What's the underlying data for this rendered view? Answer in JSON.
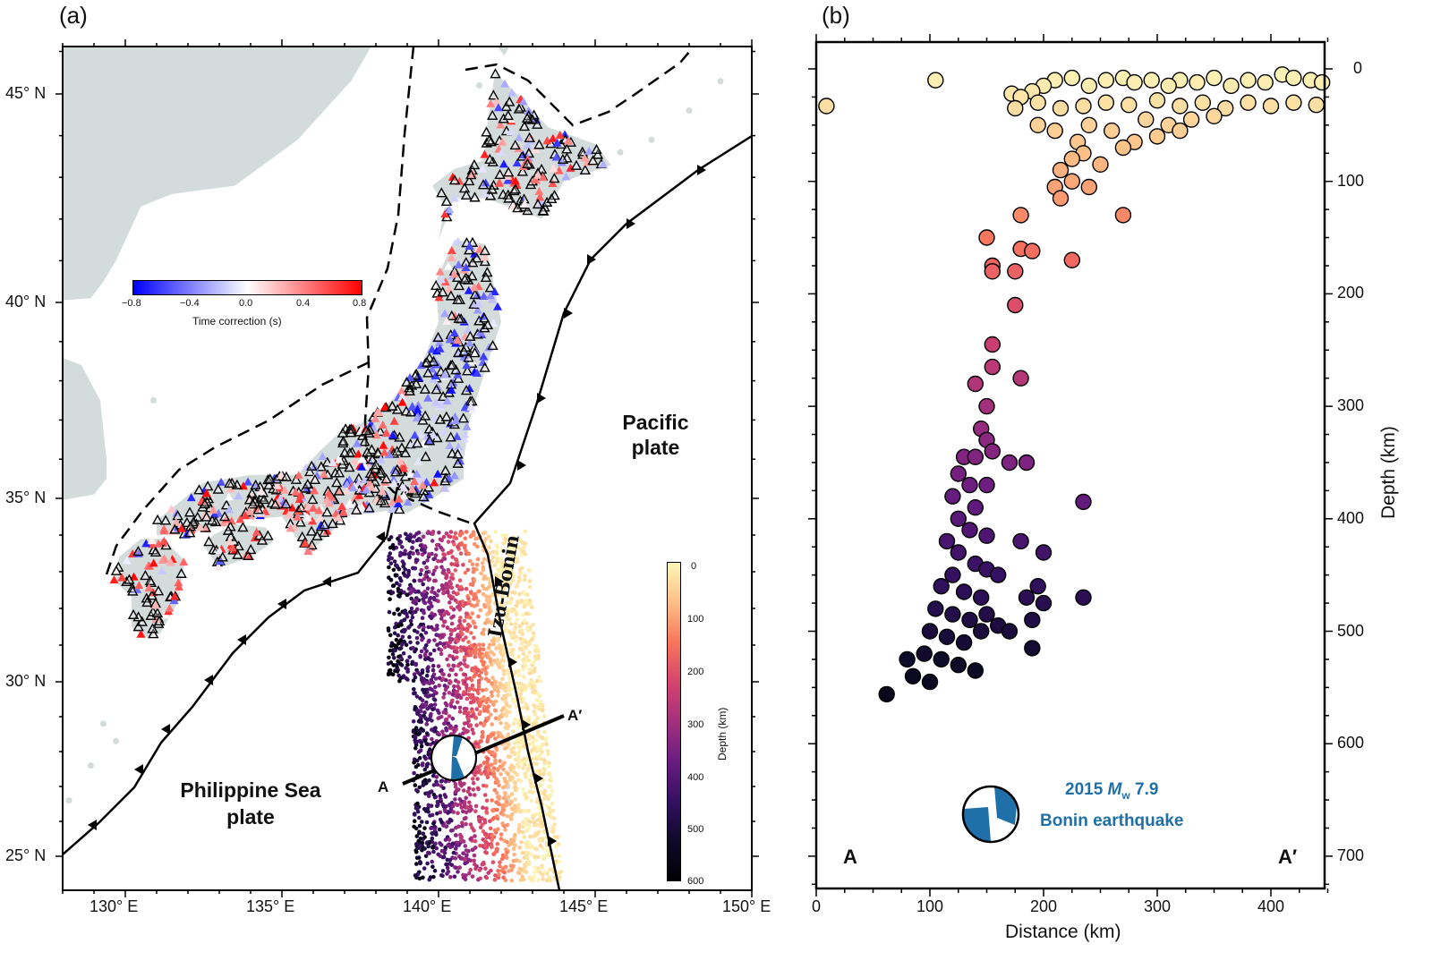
{
  "panel_a": {
    "label": "(a)",
    "lon_ticks": [
      "130° E",
      "135° E",
      "140° E",
      "145° E",
      "150° E"
    ],
    "lat_ticks": [
      "25° N",
      "30° N",
      "35° N",
      "40° N",
      "45° N"
    ],
    "plate_labels": {
      "pacific_1": "Pacific",
      "pacific_2": "plate",
      "philippine_1": "Philippine Sea",
      "philippine_2": "plate"
    },
    "trench_label": "Izu-Bonin",
    "profile": {
      "start": "A",
      "end": "A′"
    },
    "time_colorbar": {
      "ticks": [
        "−0.8",
        "−0.4",
        "0.0",
        "0.4",
        "0.8"
      ],
      "title": "Time correction (s)",
      "colors": [
        "#0000ff",
        "#ffffff",
        "#ff0000"
      ]
    },
    "depth_colorbar": {
      "ticks": [
        "0",
        "100",
        "200",
        "300",
        "400",
        "500",
        "600"
      ],
      "title": "Depth (km)"
    },
    "colors": {
      "land": "#d3dcdb",
      "beachball": "#1f6fa8"
    }
  },
  "panel_b": {
    "label": "(b)",
    "event_line1": "2015 ",
    "event_mag_sym": "M",
    "event_mag_sub": "w",
    "event_mag_val": " 7.9",
    "event_line2": "Bonin earthquake",
    "profile_start": "A",
    "profile_end": "A′"
  },
  "chart_data": {
    "type": "scatter",
    "title": "",
    "xlabel": "Distance (km)",
    "ylabel": "Depth (km)",
    "xlim": [
      0,
      450
    ],
    "ylim": [
      728,
      -24
    ],
    "x_ticks": [
      "0",
      "100",
      "200",
      "300",
      "400"
    ],
    "y_ticks": [
      "0",
      "100",
      "200",
      "300",
      "400",
      "500",
      "600",
      "700"
    ],
    "color_by": "depth",
    "points": [
      [
        9,
        33
      ],
      [
        105,
        10
      ],
      [
        172,
        22
      ],
      [
        180,
        25
      ],
      [
        190,
        20
      ],
      [
        200,
        15
      ],
      [
        210,
        10
      ],
      [
        225,
        8
      ],
      [
        240,
        15
      ],
      [
        255,
        10
      ],
      [
        270,
        8
      ],
      [
        280,
        12
      ],
      [
        295,
        10
      ],
      [
        310,
        15
      ],
      [
        320,
        10
      ],
      [
        335,
        12
      ],
      [
        350,
        8
      ],
      [
        365,
        15
      ],
      [
        380,
        10
      ],
      [
        395,
        12
      ],
      [
        410,
        5
      ],
      [
        420,
        8
      ],
      [
        435,
        10
      ],
      [
        445,
        12
      ],
      [
        175,
        35
      ],
      [
        195,
        30
      ],
      [
        215,
        35
      ],
      [
        235,
        33
      ],
      [
        255,
        30
      ],
      [
        275,
        32
      ],
      [
        300,
        28
      ],
      [
        320,
        33
      ],
      [
        340,
        30
      ],
      [
        360,
        35
      ],
      [
        380,
        30
      ],
      [
        400,
        33
      ],
      [
        420,
        30
      ],
      [
        440,
        32
      ],
      [
        290,
        45
      ],
      [
        310,
        50
      ],
      [
        330,
        45
      ],
      [
        350,
        42
      ],
      [
        300,
        60
      ],
      [
        320,
        55
      ],
      [
        280,
        65
      ],
      [
        195,
        50
      ],
      [
        210,
        55
      ],
      [
        240,
        50
      ],
      [
        260,
        55
      ],
      [
        270,
        70
      ],
      [
        230,
        65
      ],
      [
        225,
        80
      ],
      [
        235,
        75
      ],
      [
        215,
        90
      ],
      [
        225,
        100
      ],
      [
        210,
        105
      ],
      [
        240,
        105
      ],
      [
        250,
        85
      ],
      [
        215,
        115
      ],
      [
        180,
        130
      ],
      [
        270,
        130
      ],
      [
        150,
        150
      ],
      [
        180,
        160
      ],
      [
        190,
        162
      ],
      [
        155,
        175
      ],
      [
        155,
        180
      ],
      [
        175,
        180
      ],
      [
        225,
        170
      ],
      [
        175,
        210
      ],
      [
        155,
        245
      ],
      [
        155,
        265
      ],
      [
        180,
        275
      ],
      [
        140,
        280
      ],
      [
        150,
        300
      ],
      [
        145,
        320
      ],
      [
        150,
        330
      ],
      [
        155,
        340
      ],
      [
        170,
        350
      ],
      [
        185,
        350
      ],
      [
        130,
        345
      ],
      [
        140,
        345
      ],
      [
        125,
        360
      ],
      [
        135,
        370
      ],
      [
        150,
        370
      ],
      [
        120,
        380
      ],
      [
        140,
        390
      ],
      [
        125,
        400
      ],
      [
        135,
        410
      ],
      [
        150,
        415
      ],
      [
        180,
        420
      ],
      [
        115,
        420
      ],
      [
        125,
        430
      ],
      [
        140,
        440
      ],
      [
        150,
        445
      ],
      [
        160,
        450
      ],
      [
        120,
        450
      ],
      [
        110,
        460
      ],
      [
        130,
        465
      ],
      [
        145,
        470
      ],
      [
        200,
        430
      ],
      [
        195,
        460
      ],
      [
        235,
        385
      ],
      [
        105,
        480
      ],
      [
        120,
        485
      ],
      [
        135,
        490
      ],
      [
        150,
        485
      ],
      [
        160,
        495
      ],
      [
        185,
        470
      ],
      [
        200,
        475
      ],
      [
        190,
        490
      ],
      [
        235,
        470
      ],
      [
        100,
        500
      ],
      [
        115,
        505
      ],
      [
        130,
        510
      ],
      [
        145,
        500
      ],
      [
        170,
        500
      ],
      [
        190,
        515
      ],
      [
        95,
        520
      ],
      [
        110,
        525
      ],
      [
        125,
        530
      ],
      [
        140,
        535
      ],
      [
        85,
        540
      ],
      [
        100,
        545
      ],
      [
        80,
        525
      ],
      [
        62,
        556
      ]
    ]
  }
}
